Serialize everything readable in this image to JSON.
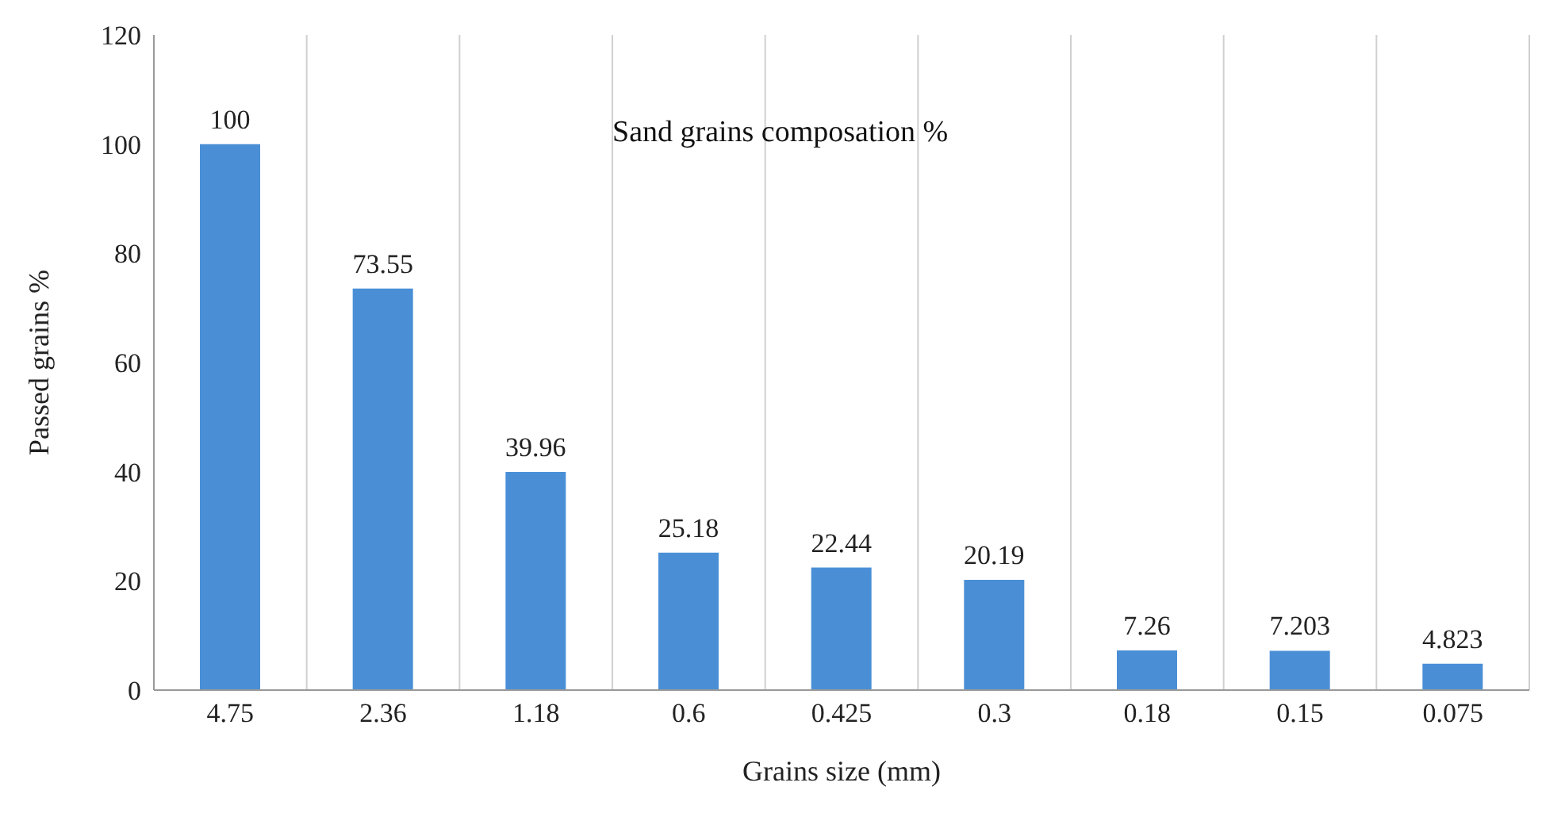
{
  "chart_data": {
    "type": "bar",
    "title": "Sand grains composation %",
    "xlabel": "Grains size  (mm)",
    "ylabel": "Passed grains %",
    "categories": [
      "4.75",
      "2.36",
      "1.18",
      "0.6",
      "0.425",
      "0.3",
      "0.18",
      "0.15",
      "0.075"
    ],
    "values": [
      100,
      73.55,
      39.96,
      25.18,
      22.44,
      20.19,
      7.26,
      7.203,
      4.823
    ],
    "color": "#4a8fd6",
    "ylim": [
      0,
      120
    ],
    "yticks": [
      0,
      20,
      40,
      60,
      80,
      100,
      120
    ],
    "grid": "x",
    "data_labels": true
  }
}
